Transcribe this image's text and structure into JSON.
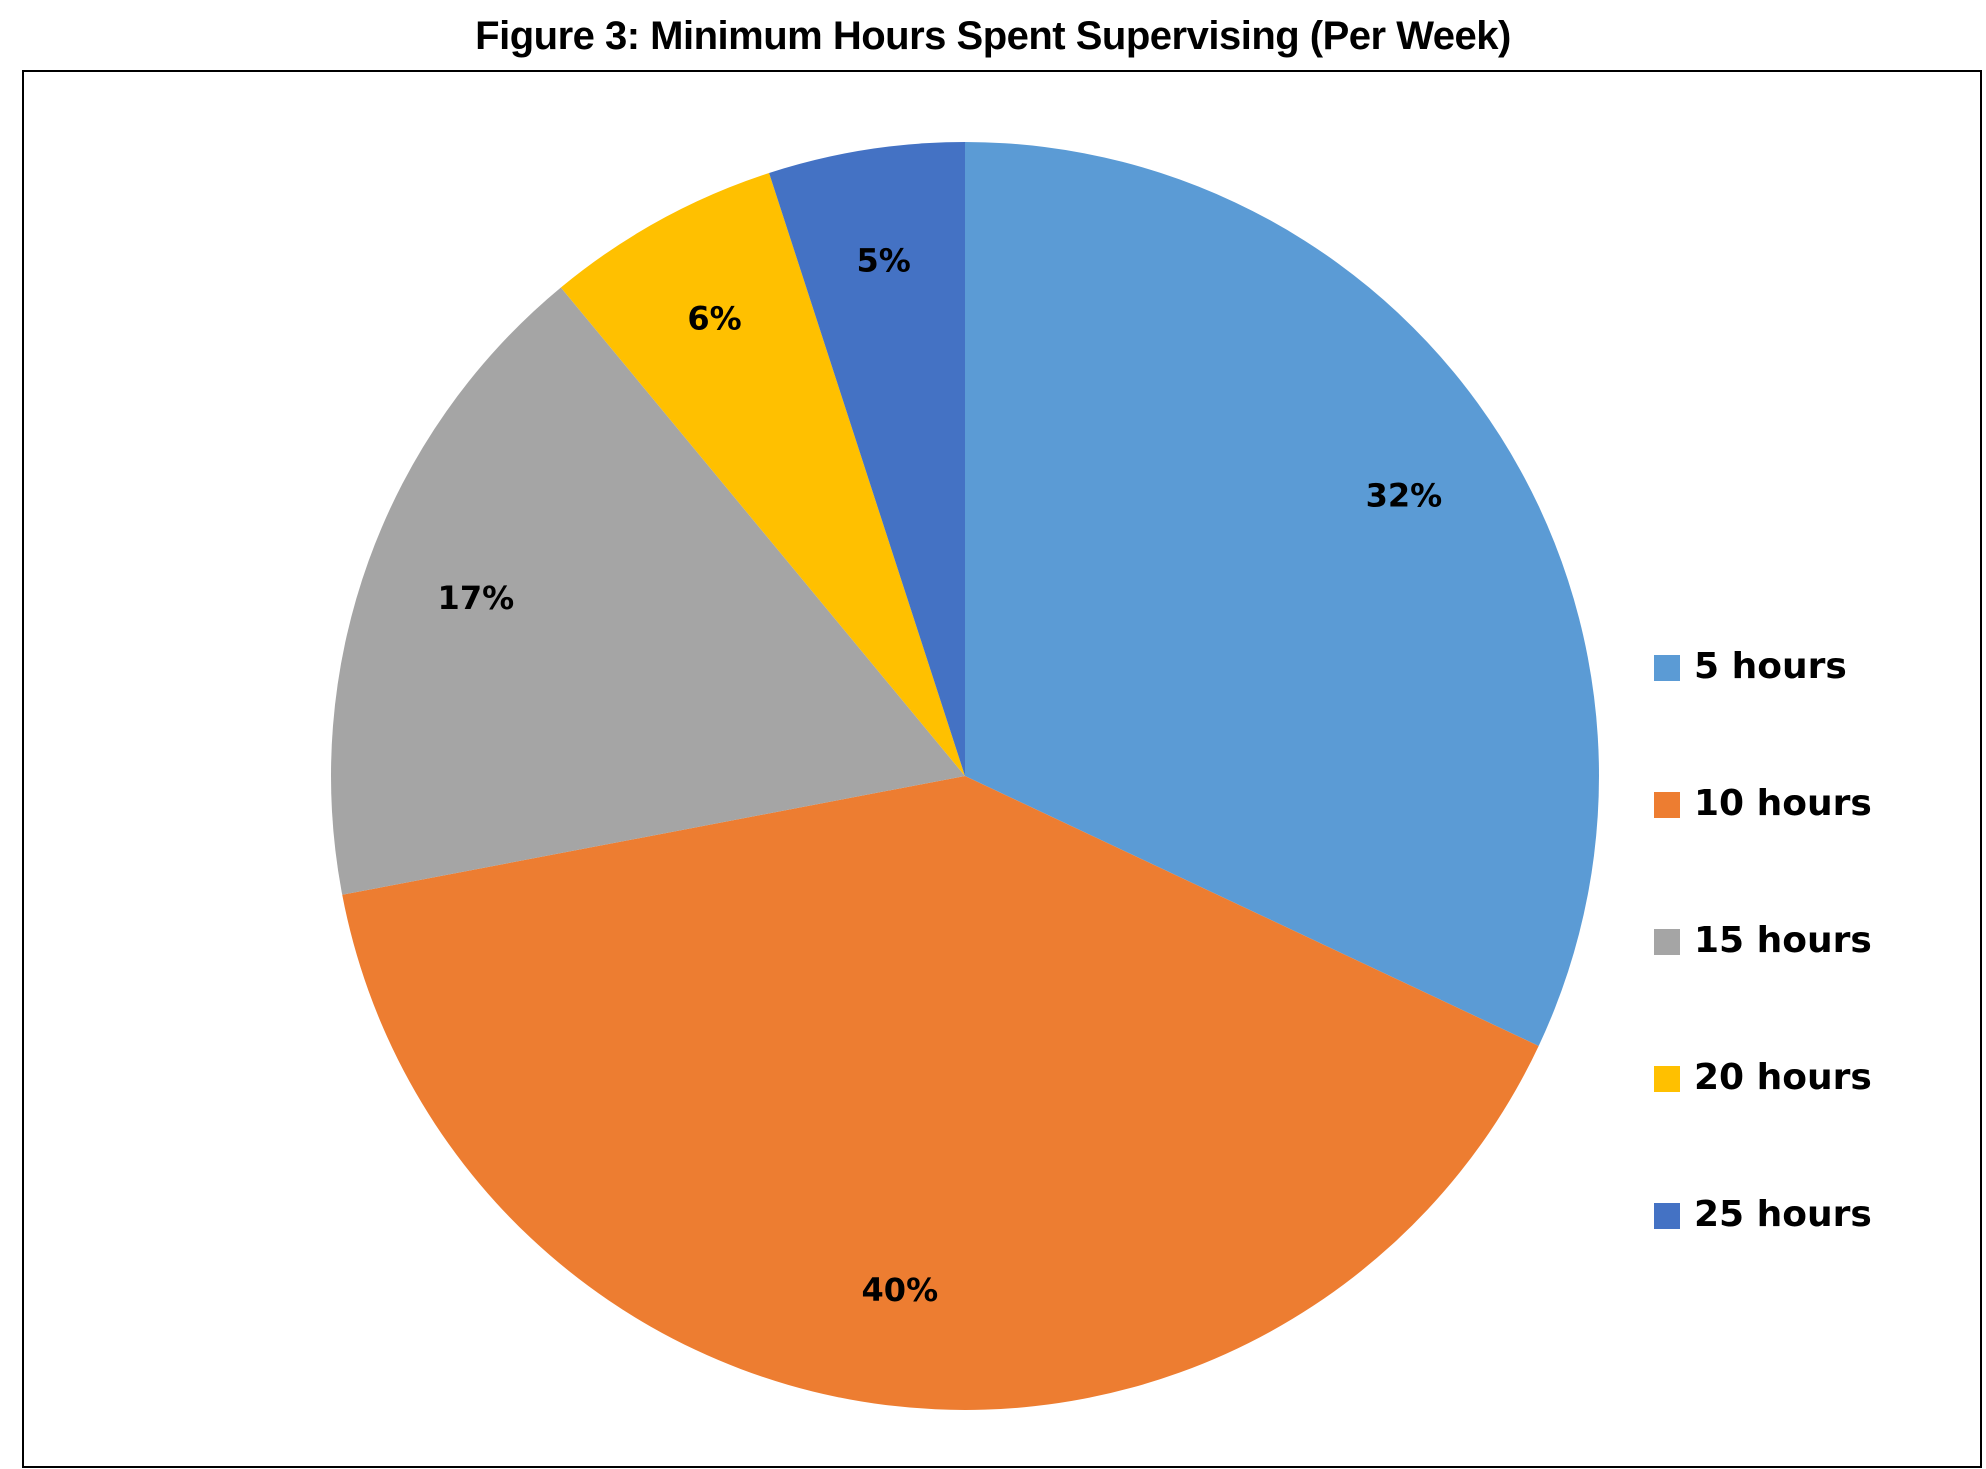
{
  "title": "Figure 3: Minimum Hours Spent Supervising (Per Week)",
  "chart_data": {
    "type": "pie",
    "title": "Figure 3: Minimum Hours Spent Supervising (Per Week)",
    "categories": [
      "5  hours",
      "10 hours",
      "15 hours",
      "20 hours",
      "25  hours"
    ],
    "values": [
      32,
      40,
      17,
      6,
      5
    ],
    "labels": [
      "32%",
      "40%",
      "17%",
      "6%",
      "5%"
    ],
    "colors": [
      "#5B9BD5",
      "#ED7D31",
      "#A5A5A5",
      "#FFC000",
      "#4472C4"
    ],
    "start_angle": "12 o'clock",
    "direction": "clockwise",
    "legend_position": "right"
  }
}
